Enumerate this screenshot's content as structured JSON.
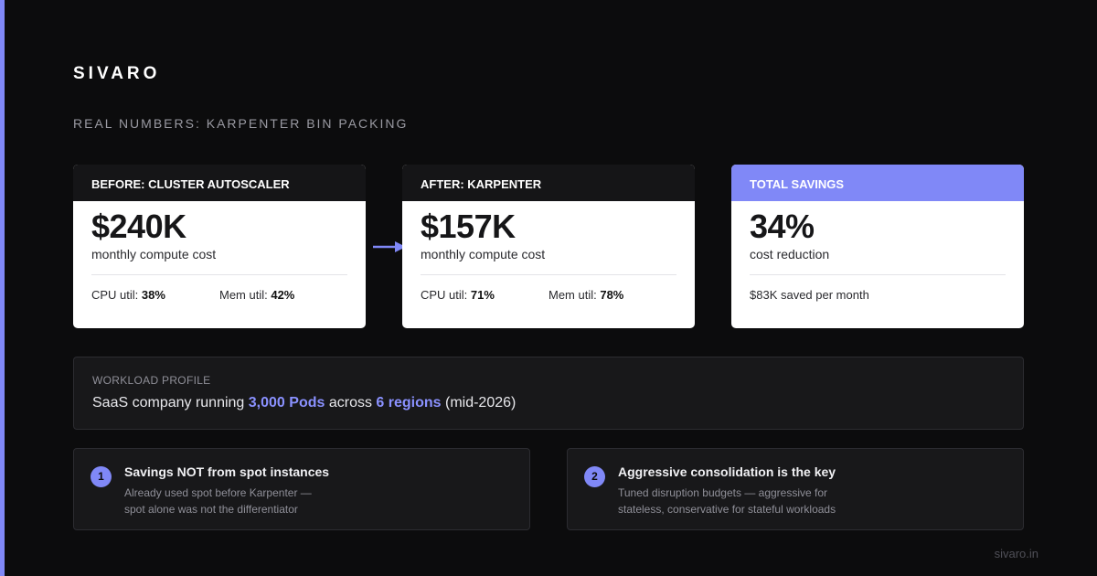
{
  "brand": "SIVARO",
  "subtitle": "REAL NUMBERS: KARPENTER BIN PACKING",
  "cards": [
    {
      "header": "BEFORE: CLUSTER AUTOSCALER",
      "value": "$240K",
      "caption": "monthly compute cost",
      "stat1_label": "CPU util: ",
      "stat1_value": "38%",
      "stat2_label": "Mem util: ",
      "stat2_value": "42%"
    },
    {
      "header": "AFTER: KARPENTER",
      "value": "$157K",
      "caption": "monthly compute cost",
      "stat1_label": "CPU util: ",
      "stat1_value": "71%",
      "stat2_label": "Mem util: ",
      "stat2_value": "78%"
    },
    {
      "header": "TOTAL SAVINGS",
      "value": "34%",
      "caption": "cost reduction",
      "detail": "$83K saved per month"
    }
  ],
  "profile": {
    "label": "WORKLOAD PROFILE",
    "text_1": "SaaS company running ",
    "pods": "3,000 Pods",
    "text_2": " across ",
    "regions": "6 regions",
    "text_3": " (mid-2026)"
  },
  "notes": [
    {
      "number": "1",
      "title": "Savings NOT from spot instances",
      "desc_line1": "Already used spot before Karpenter —",
      "desc_line2": "spot alone was not the differentiator"
    },
    {
      "number": "2",
      "title": "Aggressive consolidation is the key",
      "desc_line1": "Tuned disruption budgets — aggressive for",
      "desc_line2": "stateless, conservative for stateful workloads"
    }
  ],
  "footer": "sivaro.in",
  "colors": {
    "accent": "#8088f7",
    "highlight": "#8a91ff",
    "background": "#0c0c0d"
  }
}
